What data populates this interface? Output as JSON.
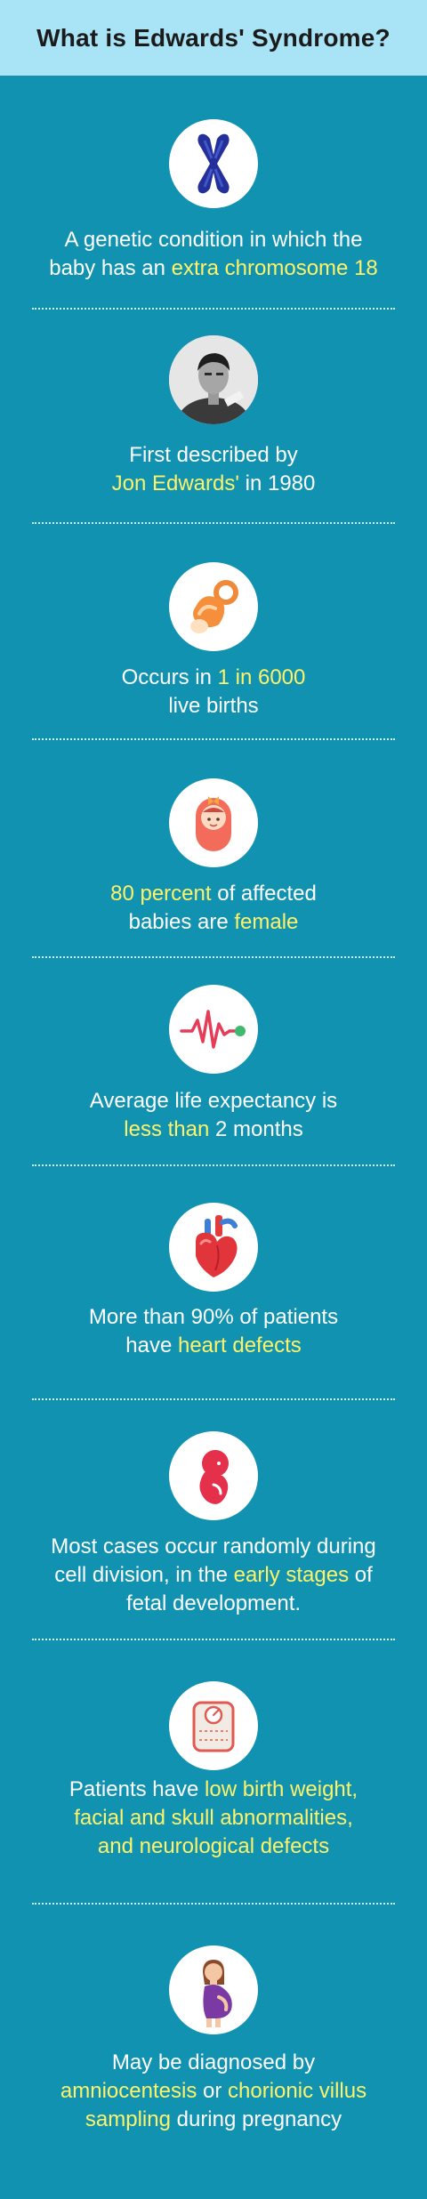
{
  "header": {
    "title": "What is Edwards' Syndrome?"
  },
  "colors": {
    "background": "#1192b0",
    "header": "#a8e4f6",
    "highlight": "#fdf36a",
    "text": "#ffffff"
  },
  "facts": [
    {
      "icon": "chromosome-icon",
      "lines": [
        [
          {
            "t": "A genetic condition in which the",
            "h": false
          }
        ],
        [
          {
            "t": "baby has an ",
            "h": false
          },
          {
            "t": "extra chromosome 18",
            "h": true
          }
        ]
      ]
    },
    {
      "icon": "portrait-photo",
      "lines": [
        [
          {
            "t": "First described by",
            "h": false
          }
        ],
        [
          {
            "t": "Jon Edwards'",
            "h": true
          },
          {
            "t": " in 1980",
            "h": false
          }
        ]
      ]
    },
    {
      "icon": "pacifier-icon",
      "lines": [
        [
          {
            "t": "Occurs in ",
            "h": false
          },
          {
            "t": "1 in 6000",
            "h": true
          }
        ],
        [
          {
            "t": "live births",
            "h": false
          }
        ]
      ]
    },
    {
      "icon": "baby-icon",
      "lines": [
        [
          {
            "t": "80 percent",
            "h": true
          },
          {
            "t": " of affected",
            "h": false
          }
        ],
        [
          {
            "t": "babies are ",
            "h": false
          },
          {
            "t": "female",
            "h": true
          }
        ]
      ]
    },
    {
      "icon": "heartbeat-line-icon",
      "lines": [
        [
          {
            "t": "Average life expectancy is",
            "h": false
          }
        ],
        [
          {
            "t": "less than",
            "h": true
          },
          {
            "t": " 2 months",
            "h": false
          }
        ]
      ]
    },
    {
      "icon": "heart-organ-icon",
      "lines": [
        [
          {
            "t": "More than 90% of patients",
            "h": false
          }
        ],
        [
          {
            "t": "have ",
            "h": false
          },
          {
            "t": "heart defects",
            "h": true
          }
        ]
      ]
    },
    {
      "icon": "fetus-icon",
      "lines": [
        [
          {
            "t": "Most cases occur randomly during",
            "h": false
          }
        ],
        [
          {
            "t": "cell division, in the ",
            "h": false
          },
          {
            "t": "early stages",
            "h": true
          },
          {
            "t": " of",
            "h": false
          }
        ],
        [
          {
            "t": "fetal development.",
            "h": false
          }
        ]
      ]
    },
    {
      "icon": "weighing-scale-icon",
      "lines": [
        [
          {
            "t": "Patients have ",
            "h": false
          },
          {
            "t": "low birth weight,",
            "h": true
          }
        ],
        [
          {
            "t": "facial and skull abnormalities,",
            "h": true
          }
        ],
        [
          {
            "t": "and neurological defects",
            "h": true
          }
        ]
      ]
    },
    {
      "icon": "pregnant-woman-icon",
      "lines": [
        [
          {
            "t": "May be diagnosed by",
            "h": false
          }
        ],
        [
          {
            "t": "amniocentesis",
            "h": true
          },
          {
            "t": " or ",
            "h": false
          },
          {
            "t": "chorionic villus",
            "h": true
          }
        ],
        [
          {
            "t": "sampling",
            "h": true
          },
          {
            "t": " during pregnancy",
            "h": false
          }
        ]
      ]
    }
  ]
}
